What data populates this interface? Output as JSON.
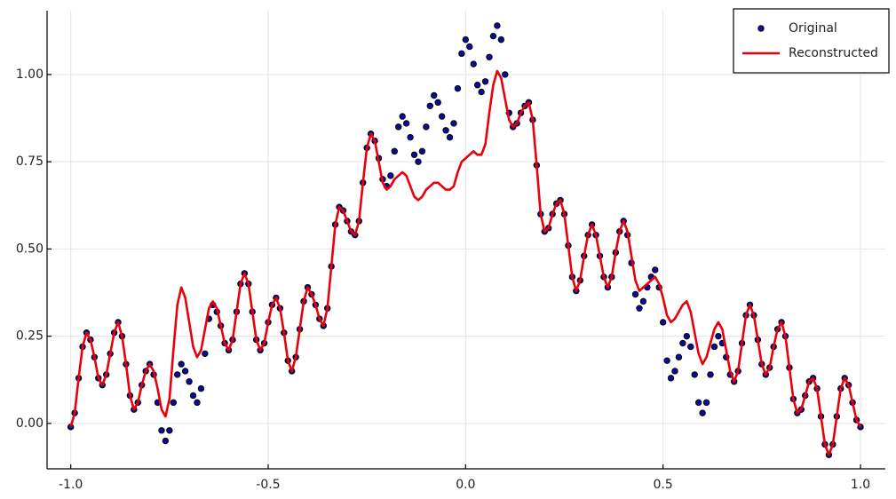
{
  "chart_data": {
    "type": "scatter",
    "x": [
      -1,
      -0.99,
      -0.98,
      -0.97,
      -0.96,
      -0.95,
      -0.94,
      -0.93,
      -0.92,
      -0.91,
      -0.9,
      -0.89,
      -0.88,
      -0.87,
      -0.86,
      -0.85,
      -0.84,
      -0.83,
      -0.82,
      -0.81,
      -0.8,
      -0.79,
      -0.78,
      -0.77,
      -0.76,
      -0.75,
      -0.74,
      -0.73,
      -0.72,
      -0.71,
      -0.7,
      -0.69,
      -0.68,
      -0.67,
      -0.66,
      -0.65,
      -0.64,
      -0.63,
      -0.62,
      -0.61,
      -0.6,
      -0.59,
      -0.58,
      -0.57,
      -0.56,
      -0.55,
      -0.54,
      -0.53,
      -0.52,
      -0.51,
      -0.5,
      -0.49,
      -0.48,
      -0.47,
      -0.46,
      -0.45,
      -0.44,
      -0.43,
      -0.42,
      -0.41,
      -0.4,
      -0.39,
      -0.38,
      -0.37,
      -0.36,
      -0.35,
      -0.34,
      -0.33,
      -0.32,
      -0.31,
      -0.3,
      -0.29,
      -0.28,
      -0.27,
      -0.26,
      -0.25,
      -0.24,
      -0.23,
      -0.22,
      -0.21,
      -0.2,
      -0.19,
      -0.18,
      -0.17,
      -0.16,
      -0.15,
      -0.14,
      -0.13,
      -0.12,
      -0.11,
      -0.1,
      -0.09,
      -0.08,
      -0.07,
      -0.06,
      -0.05,
      -0.04,
      -0.03,
      -0.02,
      -0.01,
      0,
      0.01,
      0.02,
      0.03,
      0.04,
      0.05,
      0.06,
      0.07,
      0.08,
      0.09,
      0.1,
      0.11,
      0.12,
      0.13,
      0.14,
      0.15,
      0.16,
      0.17,
      0.18,
      0.19,
      0.2,
      0.21,
      0.22,
      0.23,
      0.24,
      0.25,
      0.26,
      0.27,
      0.28,
      0.29,
      0.3,
      0.31,
      0.32,
      0.33,
      0.34,
      0.35,
      0.36,
      0.37,
      0.38,
      0.39,
      0.4,
      0.41,
      0.42,
      0.43,
      0.44,
      0.45,
      0.46,
      0.47,
      0.48,
      0.49,
      0.5,
      0.51,
      0.52,
      0.53,
      0.54,
      0.55,
      0.56,
      0.57,
      0.58,
      0.59,
      0.6,
      0.61,
      0.62,
      0.63,
      0.64,
      0.65,
      0.66,
      0.67,
      0.68,
      0.69,
      0.7,
      0.71,
      0.72,
      0.73,
      0.74,
      0.75,
      0.76,
      0.77,
      0.78,
      0.79,
      0.8,
      0.81,
      0.82,
      0.83,
      0.84,
      0.85,
      0.86,
      0.87,
      0.88,
      0.89,
      0.9,
      0.91,
      0.92,
      0.93,
      0.94,
      0.95,
      0.96,
      0.97,
      0.98,
      0.99,
      1
    ],
    "series": [
      {
        "name": "Original",
        "style": "markers",
        "color": "#0a0aa0",
        "values": [
          -0.01,
          0.03,
          0.13,
          0.22,
          0.26,
          0.24,
          0.19,
          0.13,
          0.11,
          0.14,
          0.2,
          0.26,
          0.29,
          0.25,
          0.17,
          0.08,
          0.04,
          0.06,
          0.11,
          0.15,
          0.17,
          0.14,
          0.06,
          -0.02,
          -0.05,
          -0.02,
          0.06,
          0.14,
          0.17,
          0.15,
          0.12,
          0.08,
          0.06,
          0.1,
          0.2,
          0.3,
          0.34,
          0.32,
          0.28,
          0.23,
          0.21,
          0.24,
          0.32,
          0.4,
          0.43,
          0.4,
          0.32,
          0.24,
          0.21,
          0.23,
          0.29,
          0.34,
          0.36,
          0.33,
          0.26,
          0.18,
          0.15,
          0.19,
          0.27,
          0.35,
          0.39,
          0.37,
          0.34,
          0.3,
          0.28,
          0.33,
          0.45,
          0.57,
          0.62,
          0.61,
          0.58,
          0.55,
          0.54,
          0.58,
          0.69,
          0.79,
          0.83,
          0.81,
          0.76,
          0.7,
          0.68,
          0.71,
          0.78,
          0.85,
          0.88,
          0.86,
          0.82,
          0.77,
          0.75,
          0.78,
          0.85,
          0.91,
          0.94,
          0.92,
          0.88,
          0.84,
          0.82,
          0.86,
          0.96,
          1.06,
          1.1,
          1.08,
          1.03,
          0.97,
          0.95,
          0.98,
          1.05,
          1.11,
          1.14,
          1.1,
          1.0,
          0.89,
          0.85,
          0.86,
          0.89,
          0.91,
          0.92,
          0.87,
          0.74,
          0.6,
          0.55,
          0.56,
          0.6,
          0.63,
          0.64,
          0.6,
          0.51,
          0.42,
          0.38,
          0.41,
          0.48,
          0.54,
          0.57,
          0.54,
          0.48,
          0.42,
          0.39,
          0.42,
          0.49,
          0.55,
          0.58,
          0.54,
          0.46,
          0.37,
          0.33,
          0.35,
          0.39,
          0.42,
          0.44,
          0.39,
          0.29,
          0.18,
          0.13,
          0.15,
          0.19,
          0.23,
          0.25,
          0.22,
          0.14,
          0.06,
          0.03,
          0.06,
          0.14,
          0.22,
          0.25,
          0.23,
          0.19,
          0.14,
          0.12,
          0.15,
          0.23,
          0.31,
          0.34,
          0.31,
          0.24,
          0.17,
          0.14,
          0.16,
          0.22,
          0.27,
          0.29,
          0.25,
          0.16,
          0.07,
          0.03,
          0.04,
          0.08,
          0.12,
          0.13,
          0.1,
          0.02,
          -0.06,
          -0.09,
          -0.06,
          0.02,
          0.1,
          0.13,
          0.11,
          0.06,
          0.01,
          -0.01
        ]
      },
      {
        "name": "Reconstructed",
        "style": "line",
        "color": "#e8000b",
        "values": [
          -0.01,
          0.03,
          0.13,
          0.22,
          0.26,
          0.24,
          0.19,
          0.13,
          0.11,
          0.14,
          0.2,
          0.26,
          0.29,
          0.25,
          0.17,
          0.08,
          0.04,
          0.06,
          0.11,
          0.15,
          0.17,
          0.15,
          0.1,
          0.04,
          0.02,
          0.07,
          0.21,
          0.34,
          0.39,
          0.36,
          0.29,
          0.22,
          0.19,
          0.21,
          0.27,
          0.33,
          0.35,
          0.33,
          0.28,
          0.23,
          0.21,
          0.24,
          0.32,
          0.4,
          0.43,
          0.4,
          0.32,
          0.24,
          0.21,
          0.23,
          0.29,
          0.34,
          0.36,
          0.33,
          0.26,
          0.18,
          0.15,
          0.19,
          0.27,
          0.35,
          0.39,
          0.37,
          0.34,
          0.3,
          0.28,
          0.33,
          0.45,
          0.57,
          0.62,
          0.61,
          0.58,
          0.55,
          0.54,
          0.58,
          0.69,
          0.79,
          0.83,
          0.81,
          0.75,
          0.69,
          0.67,
          0.68,
          0.7,
          0.71,
          0.72,
          0.71,
          0.68,
          0.65,
          0.64,
          0.65,
          0.67,
          0.68,
          0.69,
          0.69,
          0.68,
          0.67,
          0.67,
          0.68,
          0.72,
          0.75,
          0.76,
          0.77,
          0.78,
          0.77,
          0.77,
          0.8,
          0.89,
          0.97,
          1.01,
          0.99,
          0.93,
          0.87,
          0.85,
          0.86,
          0.89,
          0.91,
          0.92,
          0.87,
          0.74,
          0.6,
          0.55,
          0.56,
          0.6,
          0.63,
          0.64,
          0.6,
          0.51,
          0.42,
          0.38,
          0.41,
          0.48,
          0.54,
          0.57,
          0.54,
          0.48,
          0.42,
          0.39,
          0.42,
          0.49,
          0.55,
          0.58,
          0.55,
          0.48,
          0.41,
          0.38,
          0.39,
          0.4,
          0.41,
          0.42,
          0.4,
          0.36,
          0.31,
          0.29,
          0.3,
          0.32,
          0.34,
          0.35,
          0.32,
          0.26,
          0.2,
          0.17,
          0.19,
          0.23,
          0.27,
          0.29,
          0.27,
          0.21,
          0.15,
          0.12,
          0.15,
          0.23,
          0.31,
          0.34,
          0.31,
          0.24,
          0.17,
          0.14,
          0.16,
          0.22,
          0.27,
          0.29,
          0.25,
          0.16,
          0.07,
          0.03,
          0.04,
          0.08,
          0.12,
          0.13,
          0.1,
          0.02,
          -0.06,
          -0.09,
          -0.06,
          0.02,
          0.1,
          0.13,
          0.11,
          0.06,
          0.01,
          -0.01
        ]
      }
    ],
    "xlim": [
      -1.06,
      1.063
    ],
    "ylim": [
      -0.13,
      1.183
    ],
    "xticks": [
      {
        "value": -1,
        "label": "-1.0"
      },
      -0.5,
      {
        "value": 0,
        "label": "0.0"
      },
      0.5,
      {
        "value": 1,
        "label": "1.0"
      }
    ],
    "yticks": [
      {
        "value": 0,
        "label": "0.00"
      },
      0.25,
      {
        "value": 0.5,
        "label": "0.50"
      },
      0.75,
      {
        "value": 1,
        "label": "1.00"
      }
    ],
    "grid": true,
    "legend": "top-right"
  }
}
